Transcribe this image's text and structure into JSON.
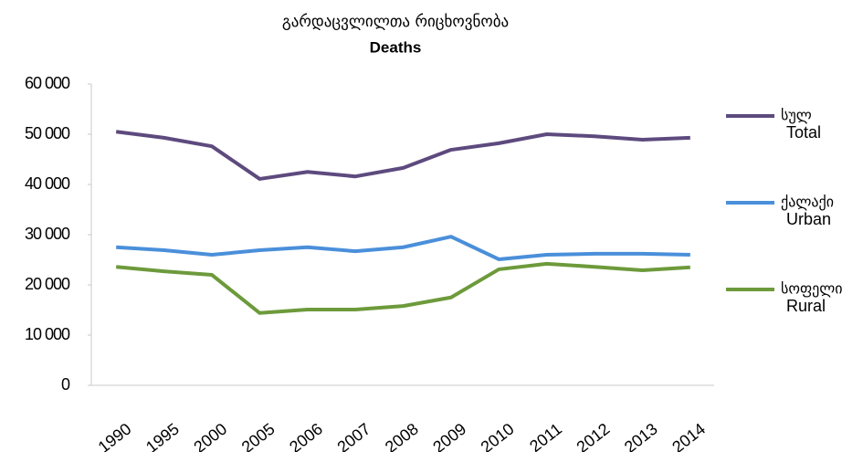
{
  "chart_data": {
    "type": "line",
    "title": "გარდაცვლილთა რიცხოვნობა",
    "subtitle": "Deaths",
    "categories": [
      "1990",
      "1995",
      "2000",
      "2005",
      "2006",
      "2007",
      "2008",
      "2009",
      "2010",
      "2011",
      "2012",
      "2013",
      "2014"
    ],
    "series": [
      {
        "name": "Total",
        "name_ka": "სულ",
        "color": "#5d4a7e",
        "values": [
          50500,
          49300,
          47600,
          41100,
          42500,
          41600,
          43300,
          46900,
          48200,
          50000,
          49600,
          48900,
          49300
        ]
      },
      {
        "name": "Urban",
        "name_ka": "ქალაქი",
        "color": "#4a8fda",
        "values": [
          27500,
          26900,
          26000,
          26900,
          27500,
          26700,
          27500,
          29600,
          25100,
          26000,
          26200,
          26200,
          26000
        ]
      },
      {
        "name": "Rural",
        "name_ka": "სოფელი",
        "color": "#6d9a3b",
        "values": [
          23600,
          22700,
          22000,
          14400,
          15100,
          15100,
          15800,
          17500,
          23100,
          24200,
          23600,
          22900,
          23500
        ]
      }
    ],
    "ylim": [
      0,
      60000
    ],
    "yticks": [
      0,
      {
        "value": 10000,
        "label": "10 000"
      },
      {
        "value": 20000,
        "label": "20 000"
      },
      {
        "value": 30000,
        "label": "30 000"
      },
      {
        "value": 40000,
        "label": "40 000"
      },
      {
        "value": 50000,
        "label": "50 000"
      },
      {
        "value": 60000,
        "label": "60 000"
      }
    ],
    "grid": false,
    "legend": "right"
  }
}
